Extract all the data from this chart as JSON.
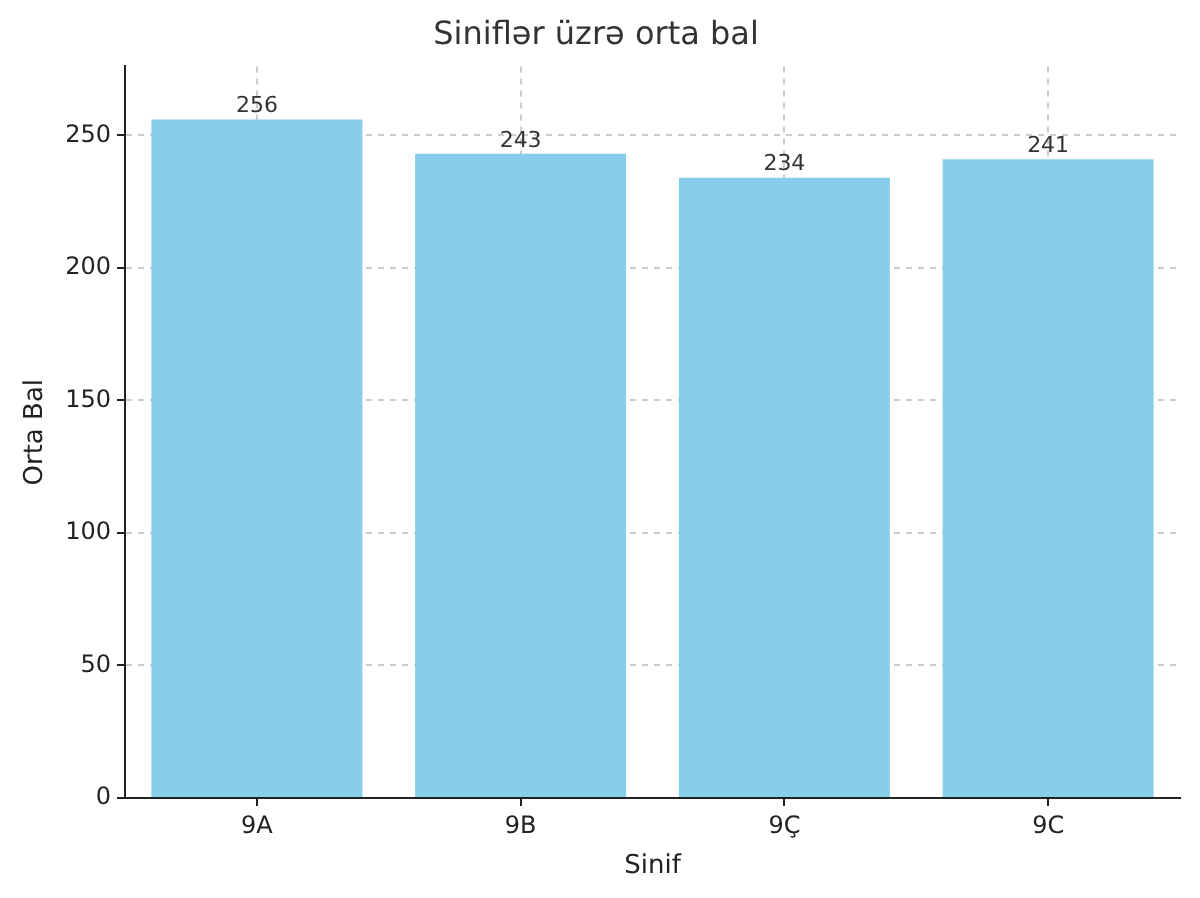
{
  "chart_data": {
    "type": "bar",
    "title": "Siniflər üzrə orta bal",
    "xlabel": "Sinif",
    "ylabel": "Orta Bal",
    "categories": [
      "9A",
      "9B",
      "9Ç",
      "9C"
    ],
    "values": [
      256,
      243,
      234,
      241
    ],
    "color": "#87ceeb",
    "ylim": [
      0,
      276
    ],
    "yticks": [
      0,
      50,
      100,
      150,
      200,
      250
    ],
    "grid": true,
    "data_labels": true
  }
}
